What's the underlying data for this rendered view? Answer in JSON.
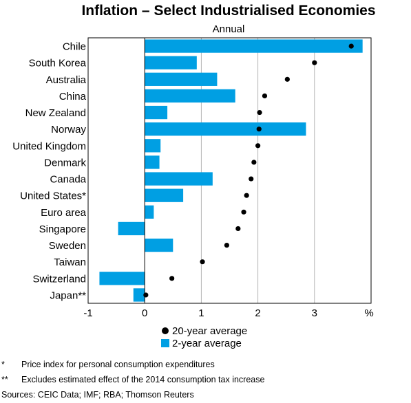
{
  "chart_data": {
    "type": "bar",
    "orientation": "horizontal",
    "title": "Inflation – Select Industrialised Economies",
    "subtitle": "Annual",
    "unit": "%",
    "categories": [
      "Chile",
      "South Korea",
      "Australia",
      "China",
      "New Zealand",
      "Norway",
      "United Kingdom",
      "Denmark",
      "Canada",
      "United States*",
      "Euro area",
      "Singapore",
      "Sweden",
      "Taiwan",
      "Switzerland",
      "Japan**"
    ],
    "series": [
      {
        "name": "2-year average",
        "type": "bar",
        "color": "#009FE3",
        "values": [
          3.85,
          0.92,
          1.28,
          1.6,
          0.4,
          2.85,
          0.28,
          0.26,
          1.2,
          0.68,
          0.16,
          -0.47,
          0.5,
          0.0,
          -0.8,
          -0.2
        ]
      },
      {
        "name": "20-year average",
        "type": "dot",
        "color": "#000000",
        "values": [
          3.65,
          3.0,
          2.52,
          2.12,
          2.03,
          2.02,
          2.0,
          1.93,
          1.88,
          1.8,
          1.75,
          1.65,
          1.45,
          1.02,
          0.48,
          0.02
        ]
      }
    ],
    "xlim": [
      -1,
      4
    ],
    "xticks": [
      "-1",
      "0",
      "1",
      "2",
      "3"
    ],
    "grid": true,
    "legend": {
      "position": "bottom",
      "items": [
        "20-year average",
        "2-year average"
      ]
    }
  },
  "footnotes": [
    {
      "mark": "*",
      "text": "Price index for personal consumption expenditures"
    },
    {
      "mark": "**",
      "text": "Excludes estimated effect of the 2014 consumption tax increase"
    }
  ],
  "sources": "Sources:  CEIC Data; IMF; RBA; Thomson Reuters"
}
